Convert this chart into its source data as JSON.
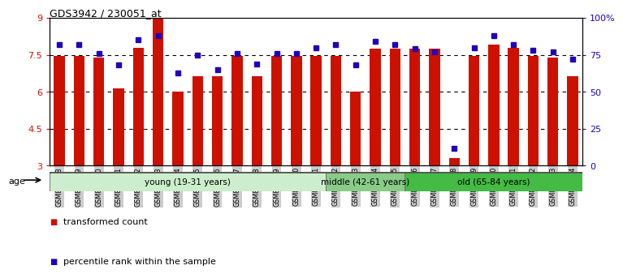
{
  "title": "GDS3942 / 230051_at",
  "samples": [
    "GSM812988",
    "GSM812989",
    "GSM812990",
    "GSM812991",
    "GSM812992",
    "GSM812993",
    "GSM812994",
    "GSM812995",
    "GSM812996",
    "GSM812997",
    "GSM812998",
    "GSM812999",
    "GSM813000",
    "GSM813001",
    "GSM813002",
    "GSM813003",
    "GSM813004",
    "GSM813005",
    "GSM813006",
    "GSM813007",
    "GSM813008",
    "GSM813009",
    "GSM813010",
    "GSM813011",
    "GSM813012",
    "GSM813013",
    "GSM813014"
  ],
  "bar_values": [
    7.45,
    7.45,
    7.4,
    6.15,
    7.8,
    9.0,
    6.0,
    6.65,
    6.65,
    7.45,
    6.65,
    7.45,
    7.45,
    7.45,
    7.45,
    6.02,
    7.76,
    7.75,
    7.75,
    7.76,
    3.3,
    7.47,
    7.92,
    7.78,
    7.46,
    7.4,
    6.62
  ],
  "percentile_values": [
    82,
    82,
    76,
    68,
    85,
    88,
    63,
    75,
    65,
    76,
    69,
    76,
    76,
    80,
    82,
    68,
    84,
    82,
    79,
    77,
    12,
    80,
    88,
    82,
    78,
    77,
    72
  ],
  "ylim_left": [
    3,
    9
  ],
  "ylim_right": [
    0,
    100
  ],
  "yticks_left": [
    3,
    4.5,
    6,
    7.5,
    9
  ],
  "ytick_labels_left": [
    "3",
    "4.5",
    "6",
    "7.5",
    "9"
  ],
  "yticks_right": [
    0,
    25,
    50,
    75,
    100
  ],
  "ytick_labels_right": [
    "0",
    "25",
    "50",
    "75",
    "100%"
  ],
  "bar_color": "#cc1100",
  "dot_color": "#2200bb",
  "bar_bottom": 3,
  "groups": [
    {
      "label": "young (19-31 years)",
      "start": 0,
      "end": 13,
      "color": "#cceecc"
    },
    {
      "label": "middle (42-61 years)",
      "start": 14,
      "end": 17,
      "color": "#88cc88"
    },
    {
      "label": "old (65-84 years)",
      "start": 18,
      "end": 26,
      "color": "#44bb44"
    }
  ],
  "age_label": "age",
  "legend_entries": [
    {
      "label": "transformed count",
      "color": "#cc1100"
    },
    {
      "label": "percentile rank within the sample",
      "color": "#2200bb"
    }
  ],
  "tick_bg_color": "#cccccc",
  "gridline_vals": [
    7.5,
    6.0,
    4.5
  ]
}
